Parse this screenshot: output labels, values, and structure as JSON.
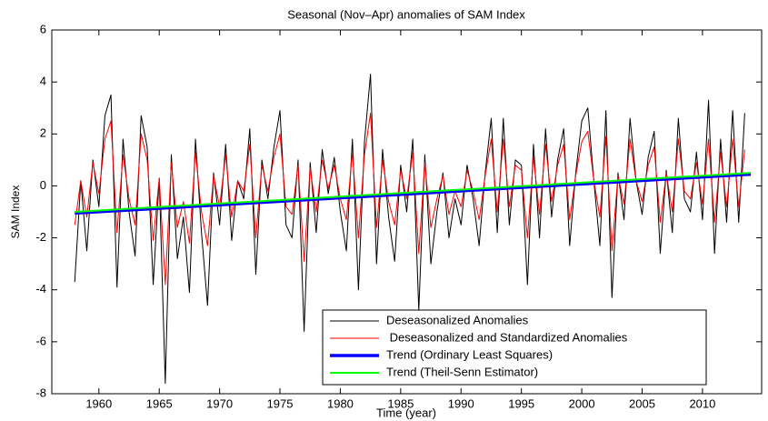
{
  "chart_data": {
    "type": "line",
    "title": "Seasonal (Nov–Apr) anomalies of SAM Index",
    "xlabel": "Time (year)",
    "ylabel": "SAM Index",
    "xlim": [
      1956.1,
      2014.9
    ],
    "ylim": [
      -8,
      6
    ],
    "xticks": [
      1960,
      1965,
      1970,
      1975,
      1980,
      1985,
      1990,
      1995,
      2000,
      2005,
      2010
    ],
    "yticks": [
      -8,
      -6,
      -4,
      -2,
      0,
      2,
      4,
      6
    ],
    "legend": "lower right",
    "x": [
      1958,
      1958.5,
      1959,
      1959.5,
      1960,
      1960.5,
      1961,
      1961.5,
      1962,
      1962.5,
      1963,
      1963.5,
      1964,
      1964.5,
      1965,
      1965.5,
      1966,
      1966.5,
      1967,
      1967.5,
      1968,
      1968.5,
      1969,
      1969.5,
      1970,
      1970.5,
      1971,
      1971.5,
      1972,
      1972.5,
      1973,
      1973.5,
      1974,
      1974.5,
      1975,
      1975.5,
      1976,
      1976.5,
      1977,
      1977.5,
      1978,
      1978.5,
      1979,
      1979.5,
      1980,
      1980.5,
      1981,
      1981.5,
      1982,
      1982.5,
      1983,
      1983.5,
      1984,
      1984.5,
      1985,
      1985.5,
      1986,
      1986.5,
      1987,
      1987.5,
      1988,
      1988.5,
      1989,
      1989.5,
      1990,
      1990.5,
      1991,
      1991.5,
      1992,
      1992.5,
      1993,
      1993.5,
      1994,
      1994.5,
      1995,
      1995.5,
      1996,
      1996.5,
      1997,
      1997.5,
      1998,
      1998.5,
      1999,
      1999.5,
      2000,
      2000.5,
      2001,
      2001.5,
      2002,
      2002.5,
      2003,
      2003.5,
      2004,
      2004.5,
      2005,
      2005.5,
      2006,
      2006.5,
      2007,
      2007.5,
      2008,
      2008.5,
      2009,
      2009.5,
      2010,
      2010.5,
      2011,
      2011.5,
      2012,
      2012.5,
      2013,
      2013.5
    ],
    "series": [
      {
        "name": "Deseasonalized Anomalies",
        "color": "#000000",
        "width": 1,
        "values": [
          -3.7,
          0.2,
          -2.5,
          1.0,
          -0.8,
          2.7,
          3.5,
          -3.9,
          1.8,
          -1.0,
          -2.7,
          2.7,
          1.5,
          -3.8,
          0.3,
          -7.6,
          1.2,
          -2.8,
          -1.2,
          -4.1,
          1.8,
          -1.8,
          -4.6,
          0.5,
          -1.5,
          1.6,
          -2.1,
          0.2,
          -0.5,
          2.2,
          -3.4,
          1.0,
          -0.5,
          1.5,
          2.9,
          -1.5,
          -2.0,
          1.0,
          -5.6,
          0.9,
          -1.8,
          1.4,
          -0.3,
          1.1,
          -1.0,
          -2.5,
          1.8,
          -4.0,
          1.7,
          4.3,
          -3.0,
          1.4,
          -1.2,
          -2.9,
          0.8,
          -1.0,
          1.8,
          -4.8,
          1.2,
          -3.0,
          -1.0,
          0.5,
          -2.0,
          -0.5,
          -1.5,
          0.8,
          -0.5,
          -2.3,
          0.5,
          2.6,
          -1.8,
          2.6,
          -1.5,
          1.0,
          0.8,
          -3.8,
          1.6,
          -2.0,
          2.2,
          -1.2,
          1.0,
          2.2,
          -2.3,
          0.5,
          2.5,
          3.0,
          0.2,
          -2.3,
          2.9,
          -4.3,
          0.5,
          -1.3,
          2.6,
          0.2,
          -1.1,
          1.1,
          2.1,
          -2.6,
          0.6,
          -1.8,
          2.6,
          -0.5,
          -1.0,
          1.3,
          -1.3,
          3.3,
          -2.6,
          1.8,
          -1.4,
          2.9,
          -1.4,
          2.8
        ]
      },
      {
        "name": " Deseasonalized and Standardized Anomalies",
        "color": "#ff0000",
        "width": 1,
        "values": [
          -1.5,
          0.2,
          -1.2,
          0.9,
          -0.3,
          1.8,
          2.5,
          -1.8,
          1.2,
          -0.5,
          -1.5,
          2.0,
          1.0,
          -2.1,
          0.3,
          -3.8,
          0.9,
          -1.6,
          -0.6,
          -2.2,
          1.3,
          -1.0,
          -2.3,
          0.4,
          -0.8,
          1.2,
          -1.2,
          0.2,
          -0.2,
          1.6,
          -2.0,
          0.8,
          -0.2,
          1.1,
          2.0,
          -0.8,
          -1.1,
          0.8,
          -2.9,
          0.7,
          -1.0,
          1.0,
          -0.1,
          0.8,
          -0.5,
          -1.3,
          1.3,
          -2.0,
          1.2,
          2.8,
          -1.6,
          1.0,
          -0.6,
          -1.5,
          0.6,
          -0.5,
          1.3,
          -2.6,
          0.9,
          -1.6,
          -0.5,
          0.4,
          -1.1,
          -0.2,
          -0.8,
          0.6,
          -0.2,
          -1.3,
          0.4,
          1.8,
          -1.0,
          1.8,
          -0.8,
          0.8,
          0.6,
          -2.0,
          1.1,
          -1.1,
          1.6,
          -0.6,
          0.8,
          1.6,
          -1.3,
          0.4,
          1.7,
          2.1,
          0.2,
          -1.2,
          1.9,
          -2.5,
          0.4,
          -0.7,
          1.8,
          0.2,
          -0.6,
          0.8,
          1.5,
          -1.4,
          0.5,
          -1.0,
          1.8,
          -0.2,
          -0.5,
          0.9,
          -0.7,
          1.8,
          -1.4,
          1.3,
          -0.8,
          1.8,
          -0.8,
          1.4
        ]
      },
      {
        "name": "Trend (Ordinary Least Squares)",
        "color": "#0000ff",
        "width": 3.5,
        "x": [
          1958,
          2014
        ],
        "values": [
          -1.05,
          0.45
        ]
      },
      {
        "name": "Trend (Theil-Senn Estimator)",
        "color": "#00ff00",
        "width": 2,
        "x": [
          1958,
          2014
        ],
        "values": [
          -1.0,
          0.5
        ]
      }
    ]
  }
}
